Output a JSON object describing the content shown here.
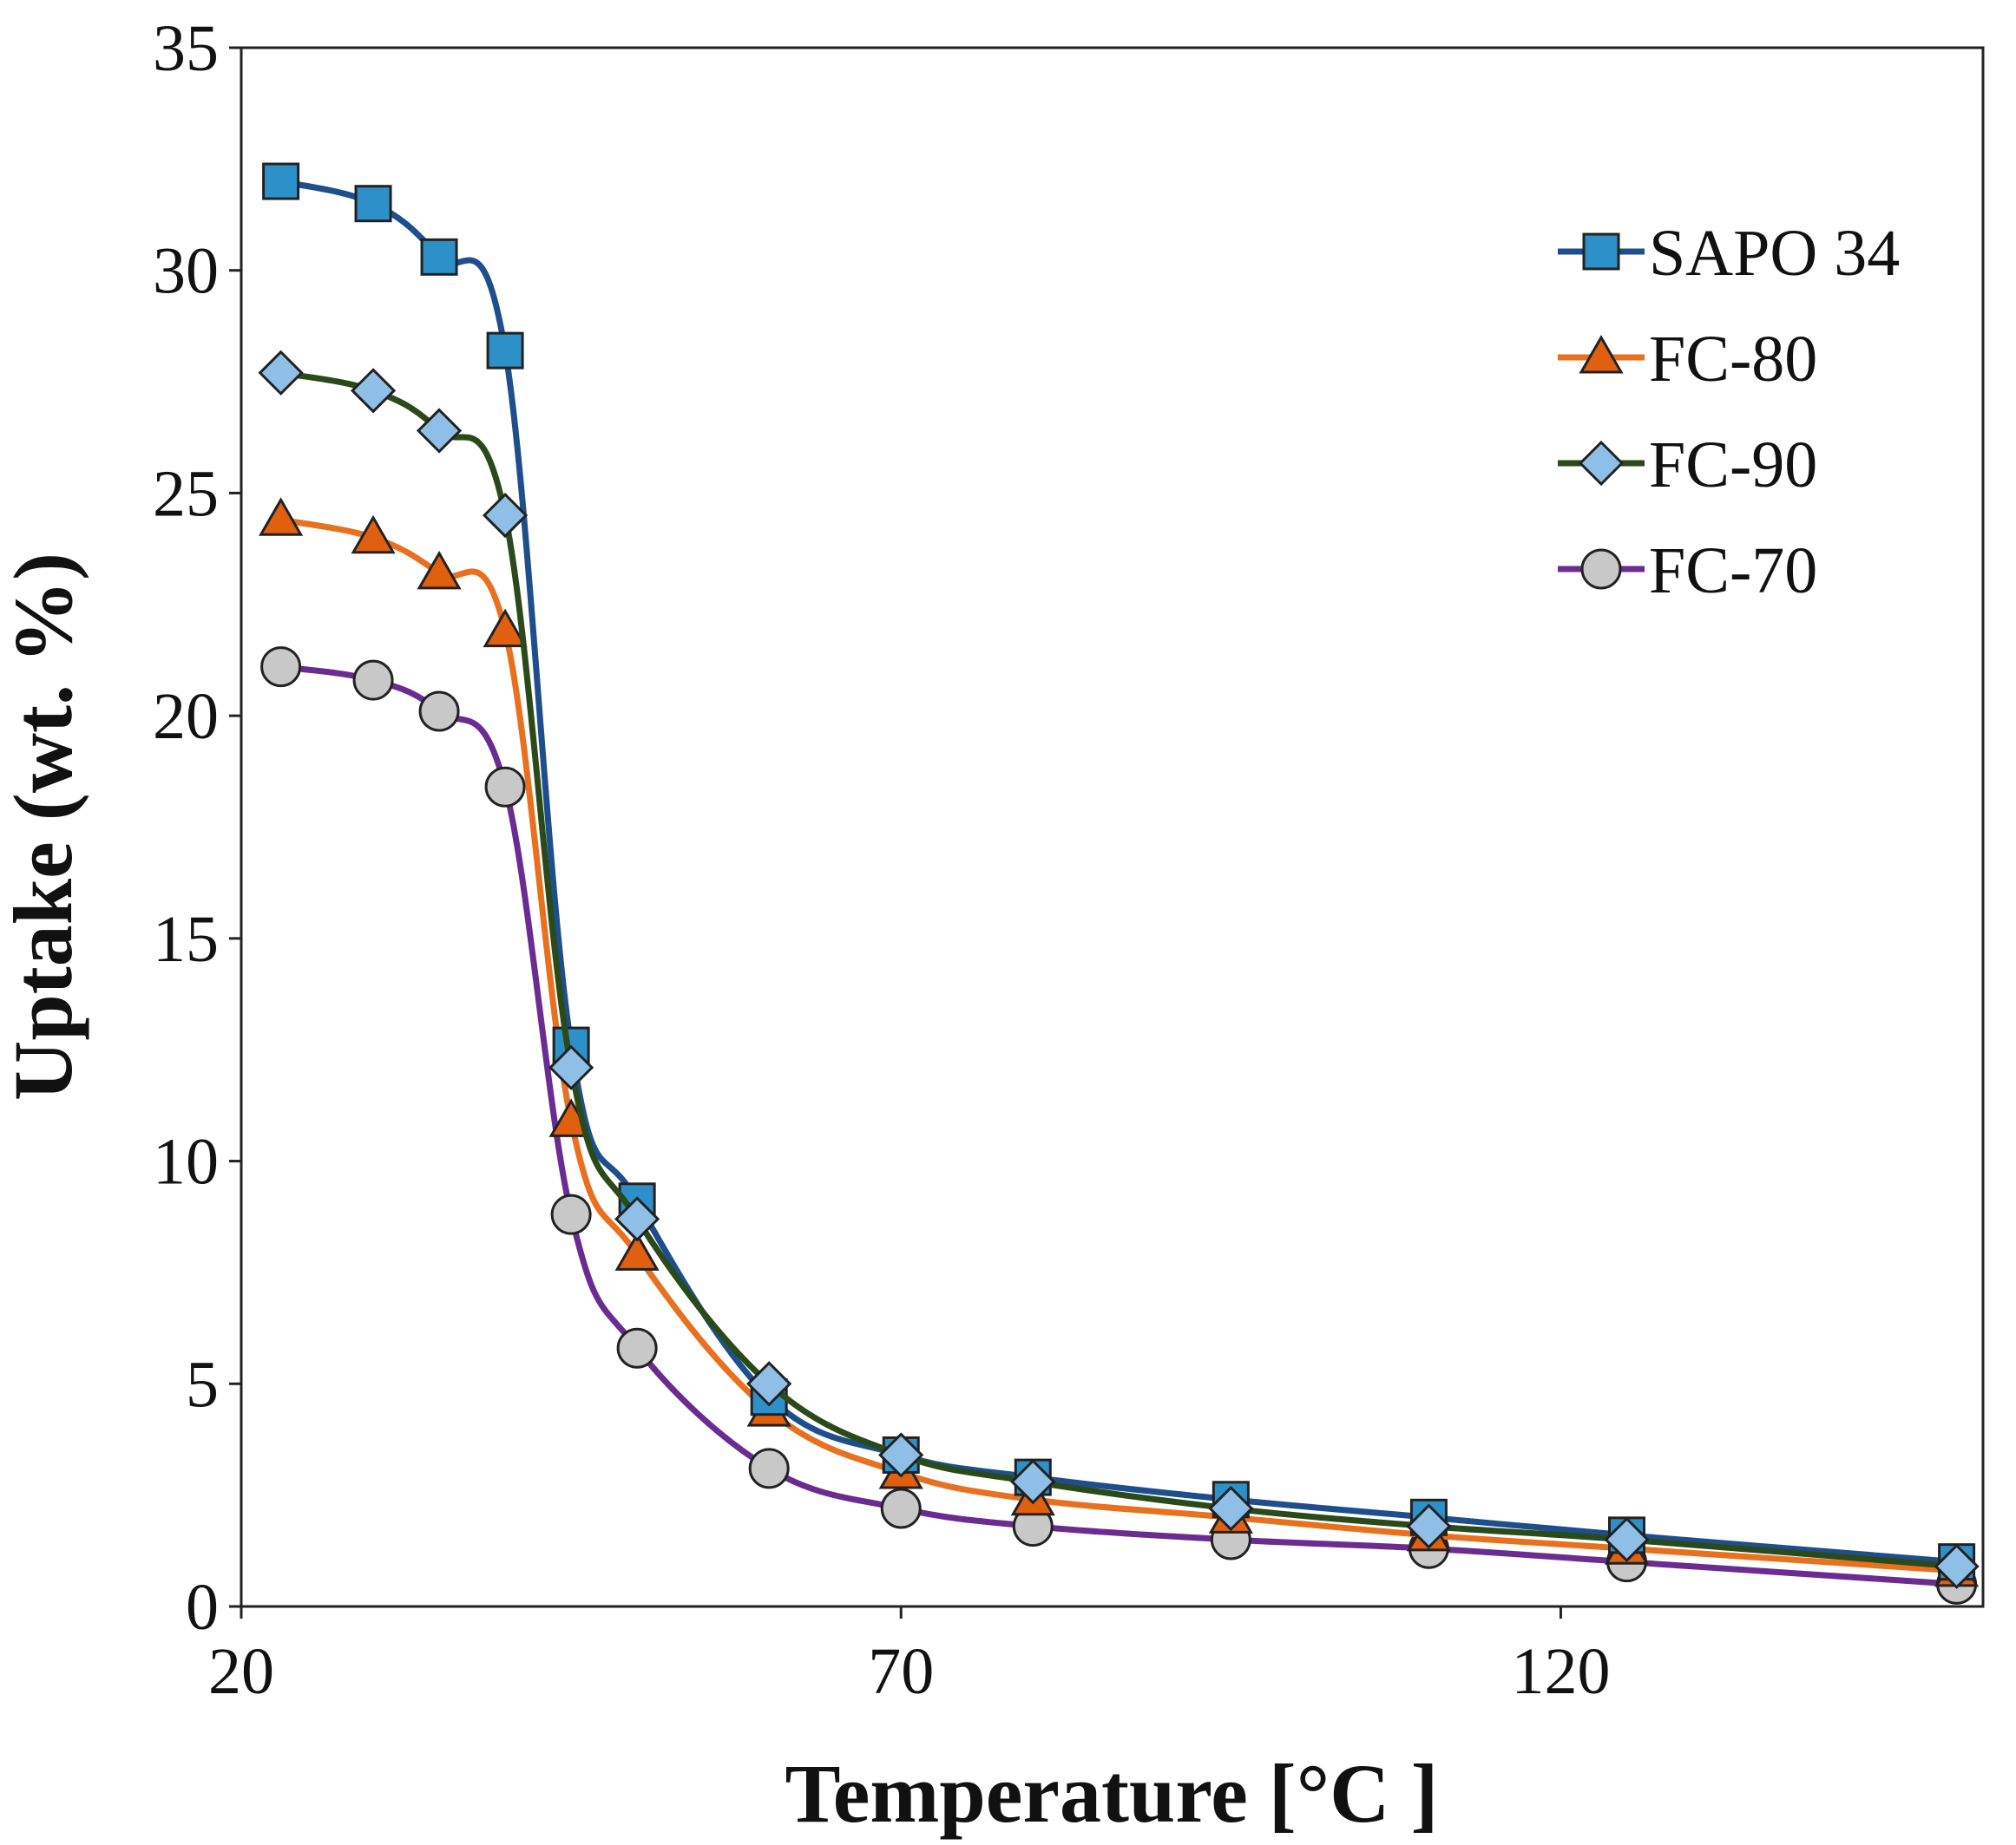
{
  "chart_data": {
    "type": "line",
    "title": "",
    "xlabel": "Temperature [°C ]",
    "ylabel": "Uptake (wt. %)",
    "xlim": [
      20,
      152
    ],
    "ylim": [
      0,
      35
    ],
    "xticks": [
      20,
      70,
      120
    ],
    "yticks": [
      0,
      5,
      10,
      15,
      20,
      25,
      30,
      35
    ],
    "grid": false,
    "legend_position": "top-right",
    "x": [
      23,
      30,
      35,
      40,
      45,
      50,
      60,
      70,
      80,
      95,
      110,
      125,
      150
    ],
    "series": [
      {
        "name": "SAPO 34",
        "marker": "square",
        "line_color": "#1f4e8c",
        "marker_fill": "#2e90c8",
        "values": [
          32.0,
          31.5,
          30.3,
          28.2,
          12.6,
          9.1,
          4.7,
          3.4,
          2.9,
          2.4,
          2.0,
          1.6,
          1.0
        ]
      },
      {
        "name": "FC-80",
        "marker": "triangle",
        "line_color": "#e8701e",
        "marker_fill": "#e06010",
        "values": [
          24.4,
          24.0,
          23.2,
          21.9,
          10.9,
          7.9,
          4.4,
          3.0,
          2.4,
          2.0,
          1.6,
          1.3,
          0.8
        ]
      },
      {
        "name": "FC-90",
        "marker": "diamond",
        "line_color": "#2b4a1a",
        "marker_fill": "#8fbfe6",
        "values": [
          27.7,
          27.3,
          26.4,
          24.5,
          12.1,
          8.7,
          5.0,
          3.4,
          2.8,
          2.2,
          1.8,
          1.5,
          0.9
        ]
      },
      {
        "name": "FC-70",
        "marker": "circle",
        "line_color": "#6a2c91",
        "marker_fill": "#c8c8c8",
        "values": [
          21.1,
          20.8,
          20.1,
          18.4,
          8.8,
          5.8,
          3.1,
          2.2,
          1.8,
          1.5,
          1.3,
          1.0,
          0.5
        ]
      }
    ]
  }
}
